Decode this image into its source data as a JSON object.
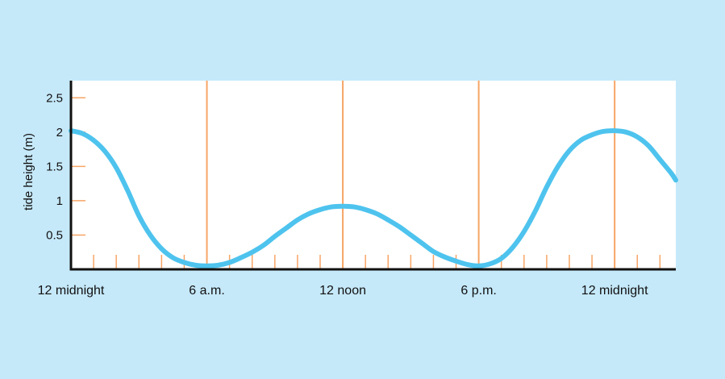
{
  "chart_data": {
    "type": "line",
    "title": "",
    "xlabel": "",
    "ylabel": "tide height (m)",
    "x_unit": "hours",
    "xlim": [
      0,
      26.7
    ],
    "ylim": [
      0,
      2.75
    ],
    "grid": false,
    "x_ticks": [
      {
        "x": 0,
        "label": "12 midnight"
      },
      {
        "x": 6,
        "label": "6 a.m."
      },
      {
        "x": 12,
        "label": "12 noon"
      },
      {
        "x": 18,
        "label": "6 p.m."
      },
      {
        "x": 24,
        "label": "12 midnight"
      }
    ],
    "y_ticks": [
      {
        "y": 0.5,
        "label": "0.5"
      },
      {
        "y": 1,
        "label": "1"
      },
      {
        "y": 1.5,
        "label": "1.5"
      },
      {
        "y": 2,
        "label": "2"
      },
      {
        "y": 2.5,
        "label": "2.5"
      }
    ],
    "vertical_lines_x": [
      6,
      12,
      18,
      24
    ],
    "minor_tick_every_hours": 1,
    "series": [
      {
        "color": "#4ec3ee",
        "points": [
          [
            0,
            2.02
          ],
          [
            0.5,
            1.98
          ],
          [
            1,
            1.88
          ],
          [
            1.5,
            1.72
          ],
          [
            2,
            1.48
          ],
          [
            2.5,
            1.15
          ],
          [
            3,
            0.78
          ],
          [
            3.5,
            0.5
          ],
          [
            4,
            0.3
          ],
          [
            4.5,
            0.17
          ],
          [
            5,
            0.1
          ],
          [
            5.5,
            0.06
          ],
          [
            6,
            0.05
          ],
          [
            6.5,
            0.06
          ],
          [
            7,
            0.1
          ],
          [
            7.5,
            0.17
          ],
          [
            8,
            0.25
          ],
          [
            8.5,
            0.35
          ],
          [
            9,
            0.48
          ],
          [
            9.5,
            0.6
          ],
          [
            10,
            0.72
          ],
          [
            10.5,
            0.81
          ],
          [
            11,
            0.87
          ],
          [
            11.5,
            0.91
          ],
          [
            12,
            0.92
          ],
          [
            12.5,
            0.91
          ],
          [
            13,
            0.87
          ],
          [
            13.5,
            0.81
          ],
          [
            14,
            0.72
          ],
          [
            14.5,
            0.62
          ],
          [
            15,
            0.5
          ],
          [
            15.5,
            0.38
          ],
          [
            16,
            0.26
          ],
          [
            16.5,
            0.18
          ],
          [
            17,
            0.12
          ],
          [
            17.5,
            0.07
          ],
          [
            18,
            0.05
          ],
          [
            18.5,
            0.08
          ],
          [
            19,
            0.16
          ],
          [
            19.5,
            0.32
          ],
          [
            20,
            0.55
          ],
          [
            20.5,
            0.85
          ],
          [
            21,
            1.2
          ],
          [
            21.5,
            1.5
          ],
          [
            22,
            1.73
          ],
          [
            22.5,
            1.88
          ],
          [
            23,
            1.96
          ],
          [
            23.5,
            2.01
          ],
          [
            24,
            2.02
          ],
          [
            24.5,
            2.0
          ],
          [
            25,
            1.93
          ],
          [
            25.5,
            1.8
          ],
          [
            26,
            1.6
          ],
          [
            26.5,
            1.4
          ],
          [
            26.7,
            1.3
          ]
        ]
      }
    ]
  }
}
